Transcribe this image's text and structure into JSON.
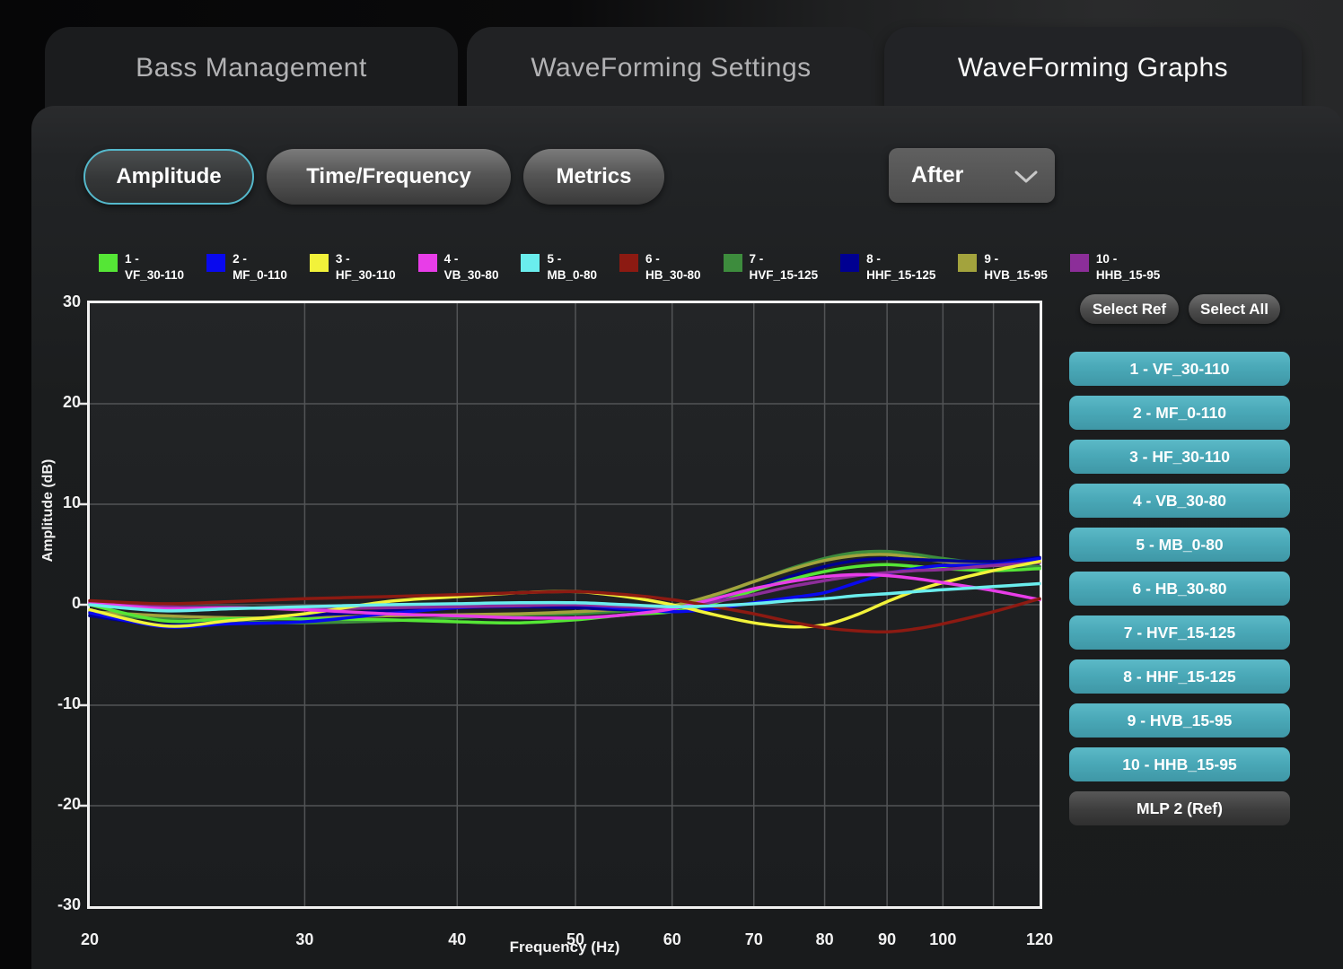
{
  "tabs": [
    {
      "label": "Bass Management",
      "active": false
    },
    {
      "label": "WaveForming Settings",
      "active": false
    },
    {
      "label": "WaveForming Graphs",
      "active": true
    }
  ],
  "toolbar": {
    "buttons": [
      {
        "label": "Amplitude",
        "selected": true
      },
      {
        "label": "Time/Frequency",
        "selected": false
      },
      {
        "label": "Metrics",
        "selected": false
      }
    ],
    "dropdown": {
      "value": "After"
    }
  },
  "legend": [
    {
      "num": "1 -",
      "name": "VF_30-110",
      "color": "#55e636"
    },
    {
      "num": "2 -",
      "name": "MF_0-110",
      "color": "#0909ee"
    },
    {
      "num": "3 -",
      "name": "HF_30-110",
      "color": "#f2f23a"
    },
    {
      "num": "4 -",
      "name": "VB_30-80",
      "color": "#e83de8"
    },
    {
      "num": "5 -",
      "name": "MB_0-80",
      "color": "#6aeded"
    },
    {
      "num": "6 -",
      "name": "HB_30-80",
      "color": "#8c1a12"
    },
    {
      "num": "7 -",
      "name": "HVF_15-125",
      "color": "#3d8c3d"
    },
    {
      "num": "8 -",
      "name": "HHF_15-125",
      "color": "#000091"
    },
    {
      "num": "9 -",
      "name": "HVB_15-95",
      "color": "#a3a33d"
    },
    {
      "num": "10 -",
      "name": "HHB_15-95",
      "color": "#8c2e99"
    }
  ],
  "chart_data": {
    "type": "line",
    "xlabel": "Frequency (Hz)",
    "ylabel": "Amplitude (dB)",
    "x_scale": "log",
    "xlim": [
      20,
      120
    ],
    "ylim": [
      -30,
      30
    ],
    "x_ticks": [
      20,
      30,
      40,
      50,
      60,
      70,
      80,
      90,
      100,
      120
    ],
    "x_gridlines": [
      30,
      40,
      50,
      60,
      70,
      80,
      90,
      100,
      110
    ],
    "y_ticks": [
      30,
      20,
      10,
      0,
      -10,
      -20,
      -30
    ],
    "y_gridlines": [
      20,
      10,
      0,
      -10,
      -20
    ],
    "grid": true,
    "legend_position": "top",
    "x": [
      20,
      23,
      26,
      30,
      35,
      40,
      45,
      50,
      55,
      60,
      65,
      70,
      75,
      80,
      85,
      90,
      95,
      100,
      110,
      120
    ],
    "series": [
      {
        "name": "1 - VF_30-110",
        "color": "#55e636",
        "values": [
          0.0,
          -1.6,
          -1.4,
          -1.4,
          -1.5,
          -1.7,
          -1.8,
          -1.5,
          -1.0,
          -0.7,
          0.2,
          1.4,
          2.5,
          3.3,
          3.8,
          4.0,
          3.8,
          3.6,
          3.4,
          3.6
        ]
      },
      {
        "name": "2 - MF_0-110",
        "color": "#0909ee",
        "values": [
          -0.8,
          -2.2,
          -1.9,
          -1.7,
          -0.9,
          -0.3,
          0.0,
          0.0,
          -0.4,
          -0.7,
          -0.4,
          0.2,
          0.7,
          1.2,
          2.2,
          3.1,
          3.6,
          3.9,
          4.0,
          4.6
        ]
      },
      {
        "name": "3 - HF_30-110",
        "color": "#f2f23a",
        "values": [
          -0.5,
          -2.1,
          -1.6,
          -0.9,
          0.3,
          0.8,
          1.2,
          1.3,
          0.8,
          0.0,
          -1.0,
          -1.8,
          -2.2,
          -2.0,
          -1.0,
          0.3,
          1.4,
          2.2,
          3.4,
          4.3
        ]
      },
      {
        "name": "4 - VB_30-80",
        "color": "#e83de8",
        "values": [
          0.2,
          -0.4,
          -0.3,
          -0.5,
          -0.9,
          -1.1,
          -1.3,
          -1.3,
          -1.0,
          -0.4,
          0.6,
          1.6,
          2.3,
          2.8,
          3.0,
          2.9,
          2.6,
          2.2,
          1.4,
          0.5
        ]
      },
      {
        "name": "5 - MB_0-80",
        "color": "#6aeded",
        "values": [
          0.0,
          -0.6,
          -0.4,
          -0.2,
          0.0,
          0.1,
          0.2,
          0.2,
          0.0,
          -0.2,
          -0.1,
          0.1,
          0.4,
          0.6,
          0.9,
          1.1,
          1.3,
          1.5,
          1.8,
          2.1
        ]
      },
      {
        "name": "6 - HB_30-80",
        "color": "#8c1a12",
        "values": [
          0.4,
          0.1,
          0.3,
          0.6,
          0.8,
          1.0,
          1.2,
          1.3,
          1.0,
          0.5,
          -0.2,
          -0.9,
          -1.7,
          -2.3,
          -2.6,
          -2.7,
          -2.4,
          -1.9,
          -0.7,
          0.6
        ]
      },
      {
        "name": "7 - HVF_15-125",
        "color": "#3d8c3d",
        "values": [
          -1.0,
          -1.4,
          -1.7,
          -1.8,
          -1.6,
          -1.3,
          -1.0,
          -0.9,
          -0.6,
          -0.2,
          0.9,
          2.3,
          3.6,
          4.6,
          5.2,
          5.3,
          5.0,
          4.6,
          4.0,
          3.8
        ]
      },
      {
        "name": "8 - HHF_15-125",
        "color": "#000091",
        "values": [
          -1.1,
          -2.0,
          -1.6,
          -1.1,
          -0.6,
          -0.3,
          -0.2,
          -0.3,
          -0.5,
          -0.4,
          0.4,
          1.5,
          2.8,
          3.8,
          4.4,
          4.6,
          4.5,
          4.4,
          4.3,
          4.7
        ]
      },
      {
        "name": "9 - HVB_15-95",
        "color": "#a3a33d",
        "values": [
          -0.7,
          -1.1,
          -1.3,
          -1.3,
          -1.1,
          -1.0,
          -0.9,
          -0.7,
          -0.4,
          -0.1,
          1.0,
          2.3,
          3.5,
          4.4,
          4.9,
          5.0,
          4.7,
          4.3,
          3.9,
          4.3
        ]
      },
      {
        "name": "10 - HHB_15-95",
        "color": "#8c2e99",
        "values": [
          0.2,
          -0.2,
          -0.3,
          -0.4,
          -0.3,
          -0.2,
          -0.1,
          0.0,
          -0.2,
          -0.3,
          0.3,
          1.0,
          1.8,
          2.4,
          2.9,
          3.2,
          3.4,
          3.5,
          3.9,
          4.2
        ]
      }
    ]
  },
  "side_panel": {
    "select_ref": "Select Ref",
    "select_all": "Select All",
    "channels": [
      "1 - VF_30-110",
      "2 - MF_0-110",
      "3 - HF_30-110",
      "4 - VB_30-80",
      "5 - MB_0-80",
      "6 - HB_30-80",
      "7 - HVF_15-125",
      "8 - HHF_15-125",
      "9 - HVB_15-95",
      "10 - HHB_15-95"
    ],
    "ref_label": "MLP 2 (Ref)"
  },
  "colors": {
    "accent_teal": "#55b9cc",
    "channel_button": "#4aa9b8",
    "grid_line": "#525456",
    "plot_border": "#f0f0f0"
  }
}
